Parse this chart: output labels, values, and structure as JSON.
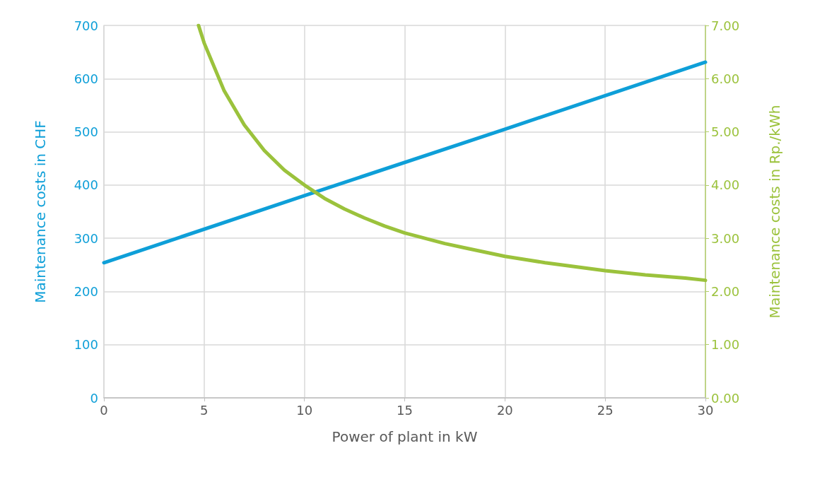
{
  "chart_data": {
    "type": "line",
    "xlabel": "Power of plant in kW",
    "ylabel": "Maintenance costs in CHF",
    "y2label": "Maintenance costs in Rp./kWh",
    "xlim": [
      0,
      30
    ],
    "xticks": [
      0,
      5,
      10,
      15,
      20,
      25,
      30
    ],
    "ylim": [
      0,
      700
    ],
    "yticks": [
      0,
      100,
      200,
      300,
      400,
      500,
      600,
      700
    ],
    "y2lim": [
      0,
      7
    ],
    "y2ticks": [
      {
        "value": 0,
        "label": "0.00"
      },
      {
        "value": 1,
        "label": "1.00"
      },
      {
        "value": 2,
        "label": "2.00"
      },
      {
        "value": 3,
        "label": "3.00"
      },
      {
        "value": 4,
        "label": "4.00"
      },
      {
        "value": 5,
        "label": "5.00"
      },
      {
        "value": 6,
        "label": "6.00"
      },
      {
        "value": 7,
        "label": "7.00"
      }
    ],
    "grid": true,
    "marker": "none",
    "line_style": "solid",
    "series": [
      {
        "color": "#0e9fd8",
        "x": [
          0,
          10,
          20,
          30
        ],
        "values": [
          254,
          380,
          505,
          631
        ]
      },
      {
        "color": "#9bc23c",
        "axis": "y2",
        "x": [
          4.72,
          5,
          6,
          7,
          8,
          9,
          10,
          11,
          12,
          13,
          14,
          15,
          16,
          17,
          18,
          19,
          20,
          21,
          22,
          23,
          24,
          25,
          26,
          27,
          28,
          29,
          30
        ],
        "values": [
          7.0,
          6.67,
          5.77,
          5.13,
          4.65,
          4.28,
          4.0,
          3.75,
          3.55,
          3.38,
          3.23,
          3.1,
          3.0,
          2.9,
          2.82,
          2.74,
          2.66,
          2.6,
          2.54,
          2.49,
          2.44,
          2.39,
          2.35,
          2.31,
          2.28,
          2.25,
          2.21
        ]
      }
    ]
  }
}
